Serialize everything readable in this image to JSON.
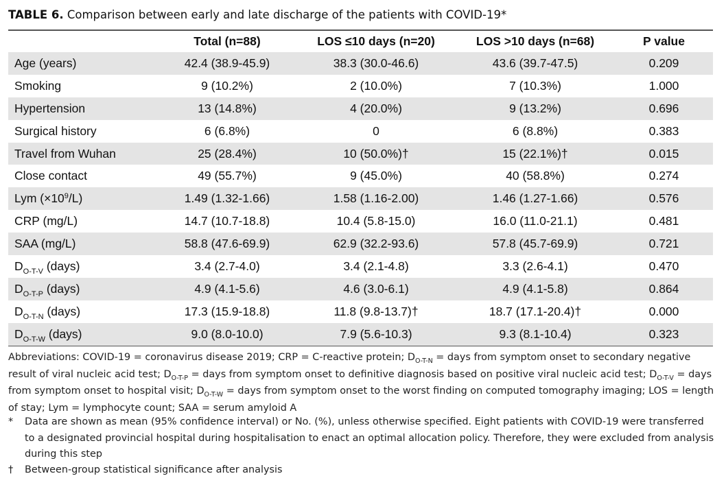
{
  "caption": {
    "label": "TABLE 6.",
    "title": "Comparison between early and late discharge of the patients with COVID-19",
    "mark": "*"
  },
  "table": {
    "headers": [
      "",
      "Total (n=88)",
      "LOS ≤10 days (n=20)",
      "LOS >10 days (n=68)",
      "P value"
    ],
    "rows": [
      {
        "label": "Age (years)",
        "cells": [
          "42.4 (38.9-45.9)",
          "38.3 (30.0-46.6)",
          "43.6 (39.7-47.5)",
          "0.209"
        ]
      },
      {
        "label": "Smoking",
        "cells": [
          "9 (10.2%)",
          "2 (10.0%)",
          "7 (10.3%)",
          "1.000"
        ]
      },
      {
        "label": "Hypertension",
        "cells": [
          "13 (14.8%)",
          "4 (20.0%)",
          "9 (13.2%)",
          "0.696"
        ]
      },
      {
        "label": "Surgical history",
        "cells": [
          "6 (6.8%)",
          "0",
          "6 (8.8%)",
          "0.383"
        ]
      },
      {
        "label": "Travel from Wuhan",
        "cells": [
          "25 (28.4%)",
          "10 (50.0%)†",
          "15 (22.1%)†",
          "0.015"
        ]
      },
      {
        "label": "Close contact",
        "cells": [
          "49 (55.7%)",
          "9 (45.0%)",
          "40 (58.8%)",
          "0.274"
        ]
      },
      {
        "label_main": "Lym (×10",
        "label_sup": "9",
        "label_tail": "/L)",
        "cells": [
          "1.49 (1.32-1.66)",
          "1.58 (1.16-2.00)",
          "1.46 (1.27-1.66)",
          "0.576"
        ]
      },
      {
        "label": "CRP (mg/L)",
        "cells": [
          "14.7 (10.7-18.8)",
          "10.4 (5.8-15.0)",
          "16.0 (11.0-21.1)",
          "0.481"
        ]
      },
      {
        "label": "SAA (mg/L)",
        "cells": [
          "58.8 (47.6-69.9)",
          "62.9 (32.2-93.6)",
          "57.8 (45.7-69.9)",
          "0.721"
        ]
      },
      {
        "label_main": "D",
        "label_sub": "O-T-V",
        "label_tail": " (days)",
        "cells": [
          "3.4 (2.7-4.0)",
          "3.4 (2.1-4.8)",
          "3.3 (2.6-4.1)",
          "0.470"
        ]
      },
      {
        "label_main": "D",
        "label_sub": "O-T-P",
        "label_tail": " (days)",
        "cells": [
          "4.9 (4.1-5.6)",
          "4.6 (3.0-6.1)",
          "4.9 (4.1-5.8)",
          "0.864"
        ]
      },
      {
        "label_main": "D",
        "label_sub": "O-T-N",
        "label_tail": " (days)",
        "cells": [
          "17.3 (15.9-18.8)",
          "11.8 (9.8-13.7)†",
          "18.7 (17.1-20.4)†",
          "0.000"
        ]
      },
      {
        "label_main": "D",
        "label_sub": "O-T-W",
        "label_tail": " (days)",
        "cells": [
          "9.0 (8.0-10.0)",
          "7.9 (5.6-10.3)",
          "9.3 (8.1-10.4)",
          "0.323"
        ]
      }
    ]
  },
  "abbreviations": {
    "p1": "Abbreviations: COVID-19 = coronavirus disease 2019; CRP = C-reactive protein; D",
    "s1": "O-T-N",
    "p2": " = days from symptom onset to secondary negative result of viral nucleic acid test; D",
    "s2": "O-T-P",
    "p3": " = days from symptom onset to definitive diagnosis based on positive viral nucleic acid test; D",
    "s3": "O-T-V",
    "p4": " = days from symptom onset to hospital visit; D",
    "s4": "O-T-W",
    "p5": " = days from symptom onset to the worst finding on computed tomography imaging; LOS = length of stay; Lym = lymphocyte count; SAA = serum amyloid A"
  },
  "notes": [
    {
      "mark": "*",
      "text": "Data are shown as mean (95% confidence interval) or No. (%), unless otherwise specified. Eight patients with COVID-19 were transferred to a designated provincial hospital during hospitalisation to enact an optimal allocation policy. Therefore, they were excluded from analysis during this step"
    },
    {
      "mark": "†",
      "text": "Between-group statistical significance after analysis"
    }
  ]
}
